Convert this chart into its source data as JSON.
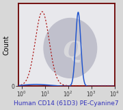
{
  "title": "Human CD14 (61D3) PE-Cyanine7",
  "ylabel": "Count",
  "xmin": 0.7,
  "xmax": 10000,
  "ymin": 0,
  "ymax": 1.12,
  "fig_bg": "#d8d8d8",
  "axes_bg": "#e8e8ec",
  "border_color": "#6b0000",
  "blue_line_color": "#2255cc",
  "red_line_color": "#aa1111",
  "watermark_ellipse_color": "#c0c0cc",
  "title_color": "#3333bb",
  "title_fontsize": 6.5,
  "ylabel_fontsize": 7,
  "tick_labelsize": 5.5
}
